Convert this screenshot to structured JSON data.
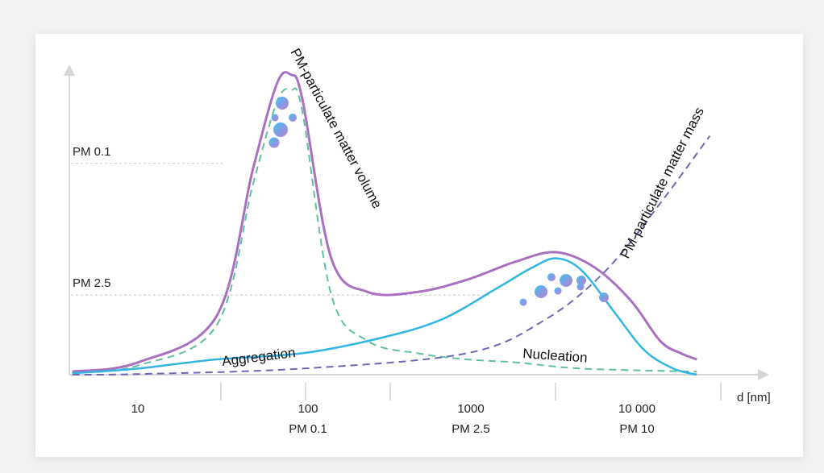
{
  "chart_data": {
    "type": "line",
    "xscale": "log",
    "xlabel": "d [nm]",
    "ylabel": "",
    "x_ticks": [
      {
        "value": 10,
        "label": "10",
        "sublabel": ""
      },
      {
        "value": 100,
        "label": "100",
        "sublabel": "PM 0.1"
      },
      {
        "value": 1000,
        "label": "1000",
        "sublabel": "PM 2.5"
      },
      {
        "value": 10000,
        "label": "10 000",
        "sublabel": "PM 10"
      }
    ],
    "y_reference_lines": [
      {
        "label": "PM 0.1",
        "value": 0.69
      },
      {
        "label": "PM 2.5",
        "value": 0.26
      }
    ],
    "series": [
      {
        "name": "PM-particulate matter volume",
        "color": "#a970c2",
        "dashed": false,
        "x": [
          4,
          10,
          30,
          50,
          70,
          85,
          100,
          150,
          250,
          500,
          1000,
          2000,
          3500,
          6000,
          10000,
          15000,
          20000,
          25000
        ],
        "y": [
          0.01,
          0.04,
          0.19,
          0.67,
          0.95,
          0.98,
          0.9,
          0.38,
          0.27,
          0.27,
          0.31,
          0.37,
          0.4,
          0.35,
          0.24,
          0.11,
          0.07,
          0.05
        ]
      },
      {
        "name": "",
        "color": "#5fc0a0",
        "dashed": true,
        "x": [
          4,
          10,
          30,
          50,
          70,
          85,
          100,
          150,
          250,
          500,
          1000,
          2000,
          5000,
          25000
        ],
        "y": [
          0.005,
          0.03,
          0.16,
          0.62,
          0.89,
          0.93,
          0.86,
          0.26,
          0.11,
          0.07,
          0.05,
          0.04,
          0.02,
          0.01
        ]
      },
      {
        "name": "",
        "color": "#30b6e0",
        "dashed": false,
        "x": [
          4,
          10,
          30,
          100,
          300,
          700,
          1500,
          2500,
          3500,
          5000,
          8000,
          12000,
          18000,
          25000
        ],
        "y": [
          0.005,
          0.02,
          0.05,
          0.07,
          0.12,
          0.18,
          0.28,
          0.35,
          0.38,
          0.34,
          0.2,
          0.08,
          0.02,
          0.0
        ]
      },
      {
        "name": "PM-particulate matter mass",
        "color": "#6e67b6",
        "dashed": true,
        "x": [
          4,
          10,
          100,
          1000,
          3000,
          7000,
          15000,
          30000
        ],
        "y": [
          0.0,
          0.002,
          0.02,
          0.07,
          0.18,
          0.34,
          0.56,
          0.78
        ]
      }
    ],
    "annotations": [
      "Aggregation",
      "Nucleation"
    ],
    "grid": false
  },
  "labels": {
    "volume": "PM-particulate matter volume",
    "mass": "PM-particulate matter mass",
    "aggregation": "Aggregation",
    "nucleation": "Nucleation",
    "xunit": "d [nm]"
  }
}
